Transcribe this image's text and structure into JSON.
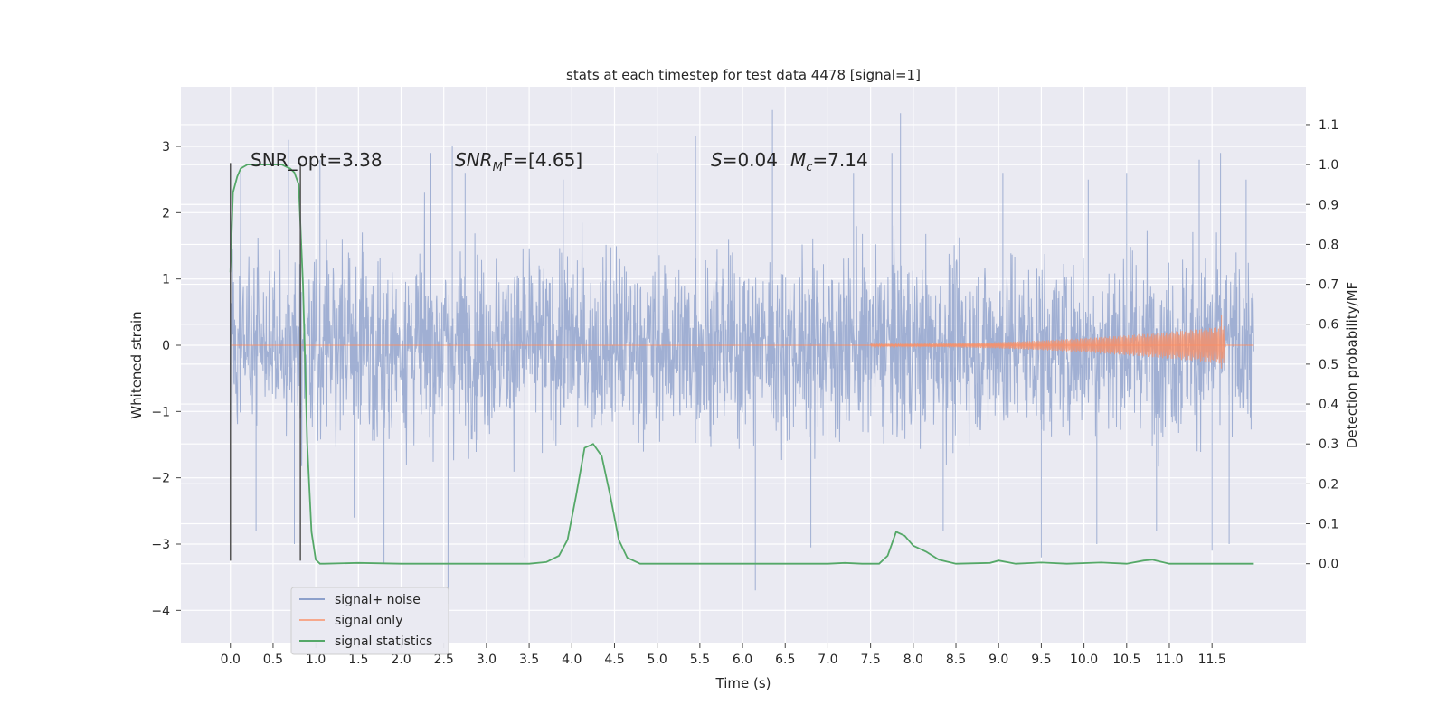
{
  "chart_data": {
    "type": "line",
    "title": "stats at each timestep for test data 4478 [signal=1]",
    "xlabel": "Time (s)",
    "ylabel": "Whitened strain",
    "ylabel_right": "Detection probability/MF",
    "xlim": [
      -0.58,
      12.6
    ],
    "ylim": [
      -4.5,
      3.9
    ],
    "ylim_right": [
      -0.2,
      1.195
    ],
    "x_ticks": [
      "0.0",
      "0.5",
      "1.0",
      "1.5",
      "2.0",
      "2.5",
      "3.0",
      "3.5",
      "4.0",
      "4.5",
      "5.0",
      "5.5",
      "6.0",
      "6.5",
      "7.0",
      "7.5",
      "8.0",
      "8.5",
      "9.0",
      "9.5",
      "10.0",
      "10.5",
      "11.0",
      "11.5"
    ],
    "y_ticks": [
      -4,
      -3,
      -2,
      -1,
      0,
      1,
      2,
      3
    ],
    "y_tick_labels": [
      "−4",
      "−3",
      "−2",
      "−1",
      "0",
      "1",
      "2",
      "3"
    ],
    "y_right_ticks": [
      "0.0",
      "0.1",
      "0.2",
      "0.3",
      "0.4",
      "0.5",
      "0.6",
      "0.7",
      "0.8",
      "0.9",
      "1.0",
      "1.1"
    ],
    "grid": true,
    "legend_position": "lower-left",
    "annotations": {
      "snr_opt": "SNR_opt=3.38",
      "snr_mf_prefix": "SNR",
      "snr_mf_sub": "M",
      "snr_mf_rest": "F=[4.65]",
      "s_sym": "S",
      "s_val": "=0.04",
      "mc_sym": "M",
      "mc_sub": "c",
      "mc_val": "=7.14"
    },
    "vlines_x": [
      0.0,
      0.82
    ],
    "series": [
      {
        "name": "signal+ noise",
        "color": "#8da0cb",
        "axis": "left",
        "x_range": [
          0.0,
          11.99
        ],
        "envelope_typical": [
          -1.6,
          1.6
        ],
        "spikes": [
          [
            0.12,
            2.6
          ],
          [
            0.3,
            -2.8
          ],
          [
            0.68,
            3.1
          ],
          [
            0.75,
            -3.0
          ],
          [
            1.05,
            2.8
          ],
          [
            1.45,
            -2.6
          ],
          [
            1.8,
            -3.3
          ],
          [
            2.35,
            2.9
          ],
          [
            2.55,
            -3.9
          ],
          [
            2.6,
            3.0
          ],
          [
            2.75,
            2.6
          ],
          [
            2.9,
            -3.1
          ],
          [
            3.45,
            -3.2
          ],
          [
            3.9,
            2.5
          ],
          [
            4.55,
            -3.1
          ],
          [
            5.0,
            2.9
          ],
          [
            5.45,
            3.15
          ],
          [
            6.15,
            -3.7
          ],
          [
            6.35,
            3.55
          ],
          [
            6.8,
            -3.05
          ],
          [
            7.3,
            2.6
          ],
          [
            7.75,
            2.9
          ],
          [
            7.85,
            3.5
          ],
          [
            8.35,
            -2.8
          ],
          [
            9.05,
            2.6
          ],
          [
            9.5,
            -3.2
          ],
          [
            10.05,
            2.5
          ],
          [
            10.15,
            -3.0
          ],
          [
            10.5,
            2.6
          ],
          [
            10.85,
            -2.8
          ],
          [
            11.35,
            2.8
          ],
          [
            11.5,
            -3.1
          ],
          [
            11.6,
            2.9
          ],
          [
            11.7,
            -3.0
          ],
          [
            11.9,
            2.5
          ]
        ]
      },
      {
        "name": "signal only",
        "color": "#fc8d62",
        "axis": "left",
        "chirp_start": 7.5,
        "chirp_end": 11.65,
        "peak_amplitude": 0.45
      },
      {
        "name": "signal statistics",
        "color": "#55a868",
        "axis": "right",
        "x": [
          0.0,
          0.03,
          0.08,
          0.12,
          0.2,
          0.3,
          0.4,
          0.5,
          0.6,
          0.7,
          0.75,
          0.8,
          0.85,
          0.9,
          0.95,
          1.0,
          1.05,
          1.1,
          1.5,
          2.0,
          2.5,
          3.0,
          3.5,
          3.7,
          3.85,
          3.95,
          4.05,
          4.15,
          4.25,
          4.35,
          4.45,
          4.55,
          4.65,
          4.8,
          5.0,
          6.0,
          7.0,
          7.2,
          7.4,
          7.6,
          7.7,
          7.8,
          7.9,
          8.0,
          8.15,
          8.3,
          8.5,
          8.9,
          9.0,
          9.2,
          9.5,
          9.8,
          10.2,
          10.5,
          10.7,
          10.8,
          11.0,
          11.5,
          11.99
        ],
        "y": [
          0.73,
          0.93,
          0.97,
          0.99,
          1.0,
          1.0,
          1.0,
          1.0,
          1.0,
          0.99,
          0.98,
          0.95,
          0.7,
          0.3,
          0.08,
          0.01,
          0.0,
          0.0,
          0.002,
          0.0,
          0.0,
          0.0,
          0.0,
          0.004,
          0.02,
          0.06,
          0.17,
          0.29,
          0.3,
          0.27,
          0.17,
          0.06,
          0.015,
          0.0,
          0.0,
          0.0,
          0.0,
          0.002,
          0.0,
          0.0,
          0.02,
          0.08,
          0.07,
          0.045,
          0.03,
          0.01,
          0.0,
          0.002,
          0.008,
          0.0,
          0.003,
          0.0,
          0.003,
          0.0,
          0.008,
          0.01,
          0.0,
          0.0,
          0.0
        ]
      }
    ]
  }
}
